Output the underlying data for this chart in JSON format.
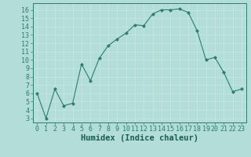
{
  "xlabel": "Humidex (Indice chaleur)",
  "x_values": [
    0,
    1,
    2,
    3,
    4,
    5,
    6,
    7,
    8,
    9,
    10,
    11,
    12,
    13,
    14,
    15,
    16,
    17,
    18,
    19,
    20,
    21,
    22,
    23
  ],
  "y_values": [
    6,
    3,
    6.5,
    4.5,
    4.8,
    9.5,
    7.5,
    10.2,
    11.7,
    12.5,
    13.2,
    14.2,
    14.1,
    15.5,
    16.0,
    16.0,
    16.1,
    15.7,
    13.5,
    10.0,
    10.3,
    8.5,
    6.2,
    6.5
  ],
  "line_color": "#2e7d6e",
  "marker_color": "#2e7d6e",
  "bg_color": "#b2ddd8",
  "grid_color": "#c8e8e4",
  "ylim": [
    2.5,
    16.8
  ],
  "xlim": [
    -0.5,
    23.5
  ],
  "yticks": [
    3,
    4,
    5,
    6,
    7,
    8,
    9,
    10,
    11,
    12,
    13,
    14,
    15,
    16
  ],
  "xticks": [
    0,
    1,
    2,
    3,
    4,
    5,
    6,
    7,
    8,
    9,
    10,
    11,
    12,
    13,
    14,
    15,
    16,
    17,
    18,
    19,
    20,
    21,
    22,
    23
  ],
  "tick_fontsize": 6,
  "xlabel_fontsize": 7.5
}
